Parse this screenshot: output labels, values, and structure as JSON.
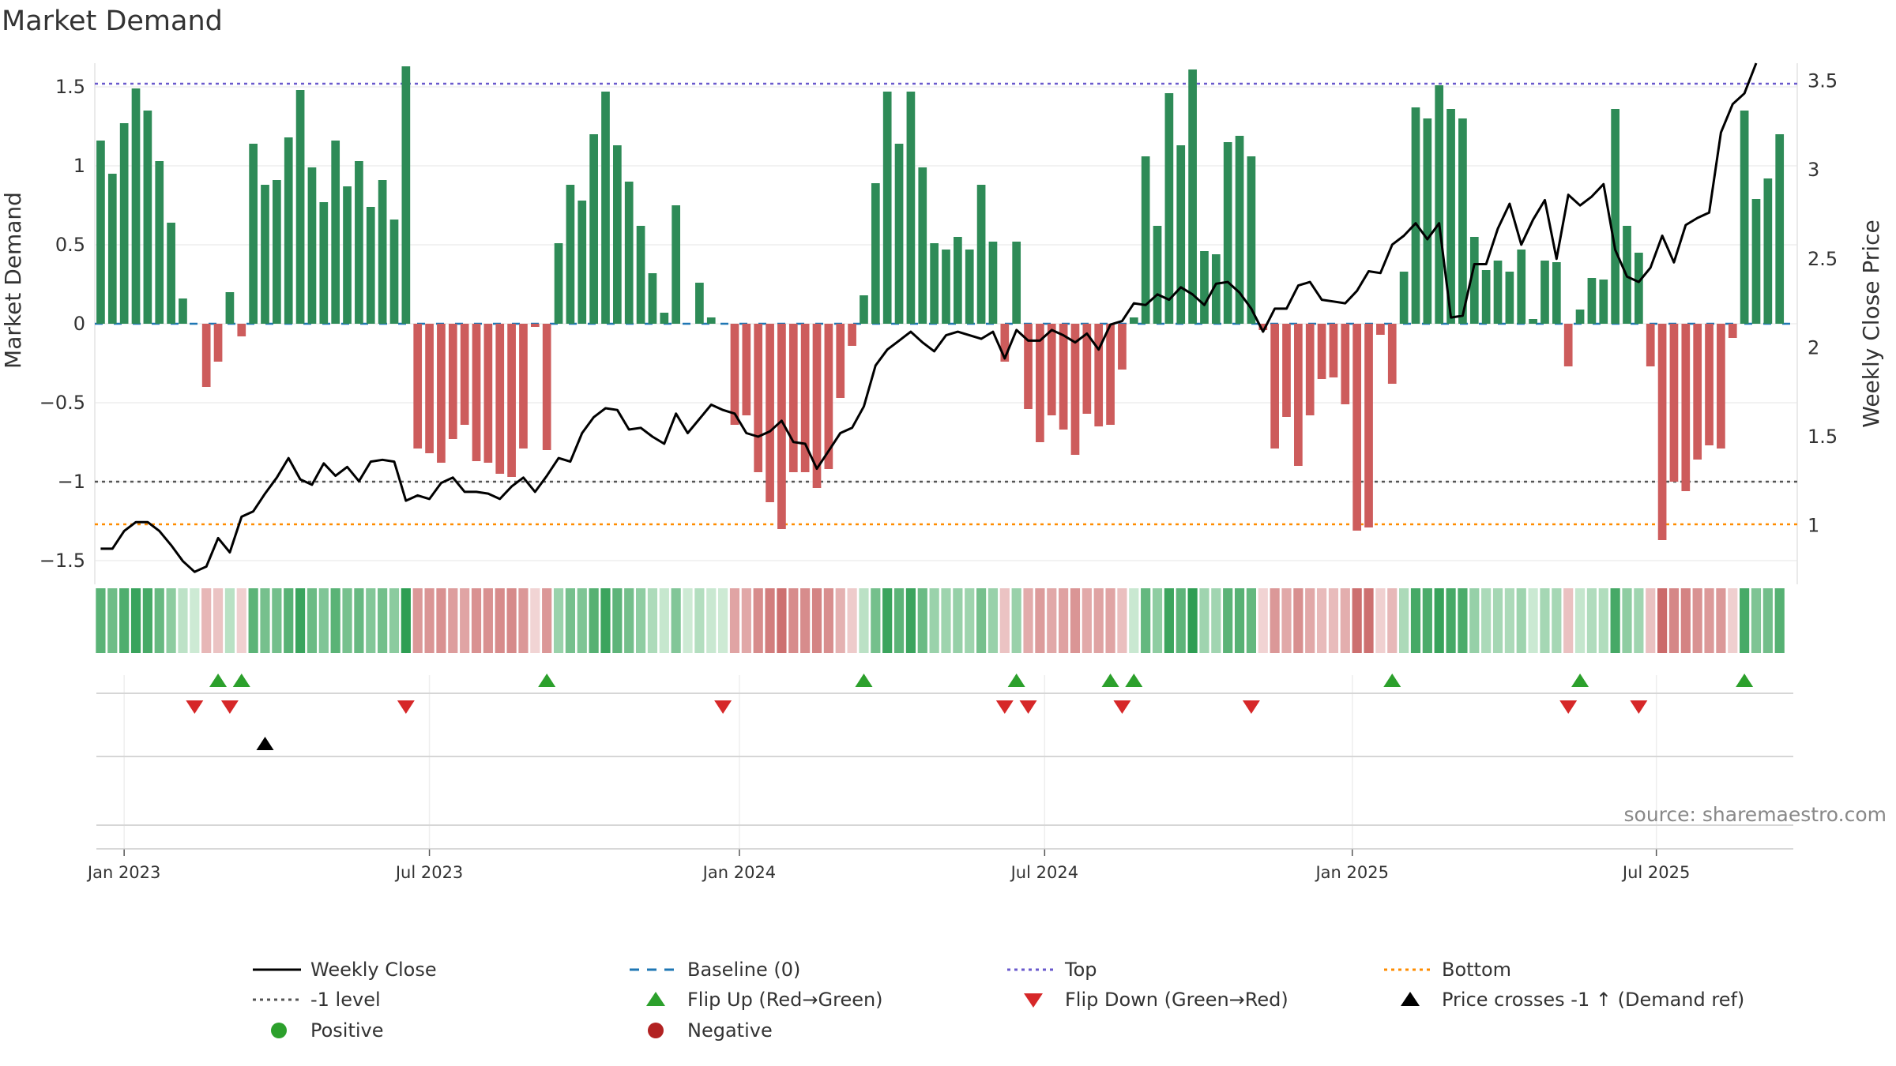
{
  "chart_data": {
    "type": "bar+line",
    "title": "Market Demand",
    "ylabel_left": "Market Demand",
    "ylabel_right": "Weekly Close Price",
    "ylim_left": [
      -1.65,
      1.65
    ],
    "ylim_right": [
      0.67,
      3.6
    ],
    "yticks_left": [
      1.5,
      1,
      0.5,
      0,
      -0.5,
      -1,
      -1.5
    ],
    "yticks_left_labels": [
      "1.5",
      "1",
      "0.5",
      "0",
      "−0.5",
      "−1",
      "−1.5"
    ],
    "yticks_right": [
      3.5,
      3,
      2.5,
      2,
      1.5,
      1
    ],
    "yticks_right_labels": [
      "3.5",
      "3",
      "2.5",
      "2",
      "1.5",
      "1"
    ],
    "x_start": "2022-12-19",
    "week_count": 145,
    "x_ticks": [
      {
        "label": "Jan 2023",
        "week": 2
      },
      {
        "label": "Jul 2023",
        "week": 28
      },
      {
        "label": "Jan 2024",
        "week": 54.4
      },
      {
        "label": "Jul 2024",
        "week": 80.4
      },
      {
        "label": "Jan 2025",
        "week": 106.6
      },
      {
        "label": "Jul 2025",
        "week": 132.5
      }
    ],
    "reference_lines": {
      "top": 1.52,
      "minus_one": -1.0,
      "bottom": -1.27,
      "baseline": 0
    },
    "demand": [
      1.16,
      0.95,
      1.27,
      1.49,
      1.35,
      1.03,
      0.64,
      0.16,
      0.0,
      -0.4,
      -0.24,
      0.2,
      -0.08,
      1.14,
      0.88,
      0.91,
      1.18,
      1.48,
      0.99,
      0.77,
      1.16,
      0.87,
      1.03,
      0.74,
      0.91,
      0.66,
      1.63,
      -0.79,
      -0.82,
      -0.88,
      -0.73,
      -0.64,
      -0.87,
      -0.88,
      -0.95,
      -0.97,
      -0.79,
      -0.02,
      -0.8,
      0.51,
      0.88,
      0.78,
      1.2,
      1.47,
      1.13,
      0.9,
      0.62,
      0.32,
      0.07,
      0.75,
      0.0,
      0.26,
      0.04,
      0.0,
      -0.64,
      -0.58,
      -0.94,
      -1.13,
      -1.3,
      -0.94,
      -0.94,
      -1.04,
      -0.92,
      -0.47,
      -0.14,
      0.18,
      0.89,
      1.47,
      1.14,
      1.47,
      0.99,
      0.51,
      0.47,
      0.55,
      0.47,
      0.88,
      0.52,
      -0.24,
      0.52,
      -0.54,
      -0.75,
      -0.58,
      -0.67,
      -0.83,
      -0.57,
      -0.65,
      -0.64,
      -0.29,
      0.04,
      1.06,
      0.62,
      1.46,
      1.13,
      1.61,
      0.46,
      0.44,
      1.15,
      1.19,
      1.06,
      -0.04,
      -0.79,
      -0.59,
      -0.9,
      -0.58,
      -0.35,
      -0.34,
      -0.51,
      -1.31,
      -1.29,
      -0.07,
      -0.38,
      0.33,
      1.37,
      1.3,
      1.51,
      1.36,
      1.3,
      0.55,
      0.34,
      0.4,
      0.33,
      0.47,
      0.03,
      0.4,
      0.39,
      -0.27,
      0.09,
      0.29,
      0.28,
      1.36,
      0.62,
      0.45,
      -0.27,
      -1.37,
      -1.0,
      -1.06,
      -0.86,
      -0.77,
      -0.79,
      -0.09,
      1.35,
      0.79,
      0.92,
      1.2
    ],
    "price": [
      0.87,
      0.87,
      0.97,
      1.02,
      1.02,
      0.97,
      0.89,
      0.8,
      0.74,
      0.77,
      0.93,
      0.85,
      1.05,
      1.08,
      1.18,
      1.27,
      1.38,
      1.26,
      1.23,
      1.35,
      1.28,
      1.33,
      1.25,
      1.36,
      1.37,
      1.36,
      1.14,
      1.17,
      1.15,
      1.24,
      1.27,
      1.19,
      1.19,
      1.18,
      1.15,
      1.22,
      1.27,
      1.19,
      1.28,
      1.38,
      1.36,
      1.52,
      1.61,
      1.66,
      1.65,
      1.54,
      1.55,
      1.5,
      1.46,
      1.63,
      1.52,
      1.6,
      1.68,
      1.65,
      1.63,
      1.52,
      1.5,
      1.53,
      1.59,
      1.47,
      1.46,
      1.32,
      1.42,
      1.52,
      1.55,
      1.67,
      1.9,
      1.99,
      2.04,
      2.09,
      2.03,
      1.98,
      2.07,
      2.09,
      2.07,
      2.05,
      2.09,
      1.94,
      2.1,
      2.04,
      2.04,
      2.1,
      2.07,
      2.03,
      2.08,
      1.99,
      2.13,
      2.15,
      2.25,
      2.24,
      2.3,
      2.27,
      2.34,
      2.3,
      2.24,
      2.36,
      2.37,
      2.31,
      2.22,
      2.09,
      2.22,
      2.22,
      2.35,
      2.37,
      2.27,
      2.26,
      2.25,
      2.32,
      2.43,
      2.42,
      2.58,
      2.63,
      2.7,
      2.61,
      2.7,
      2.17,
      2.18,
      2.47,
      2.47,
      2.67,
      2.81,
      2.58,
      2.72,
      2.83,
      2.5,
      2.86,
      2.8,
      2.85,
      2.92,
      2.55,
      2.4,
      2.37,
      2.45,
      2.63,
      2.48,
      2.69,
      2.73,
      2.76,
      3.21,
      3.37,
      3.43,
      3.6
    ],
    "flip_up_weeks": [
      10,
      12,
      38,
      65,
      78,
      86,
      88,
      110,
      126,
      140
    ],
    "flip_down_weeks": [
      8,
      11,
      26,
      53,
      77,
      79,
      87,
      98,
      125,
      131
    ],
    "price_cross_weeks": [
      14
    ],
    "legend": [
      {
        "label": "Weekly Close",
        "marker": "solid-line",
        "color": "#000000"
      },
      {
        "label": "Baseline (0)",
        "marker": "dash-line",
        "color": "#1f77b4"
      },
      {
        "label": "Top",
        "marker": "dot-line",
        "color": "#6a5acd"
      },
      {
        "label": "Bottom",
        "marker": "dot-line",
        "color": "#ff8c00"
      },
      {
        "label": "-1 level",
        "marker": "dot-line",
        "color": "#555555"
      },
      {
        "label": "Flip Up (Red→Green)",
        "marker": "triangle-up",
        "color": "#2ca02c"
      },
      {
        "label": "Flip Down (Green→Red)",
        "marker": "triangle-down",
        "color": "#d62728"
      },
      {
        "label": "Price crosses -1 ↑ (Demand ref)",
        "marker": "triangle-up",
        "color": "#000000"
      },
      {
        "label": "Positive",
        "marker": "circle",
        "color": "#2ca02c"
      },
      {
        "label": "Negative",
        "marker": "circle",
        "color": "#b22222"
      }
    ],
    "colors": {
      "positive_bar": "#2e8b57",
      "negative_bar": "#cd5c5c",
      "price_line": "#000000",
      "flip_up": "#2ca02c",
      "flip_down": "#d62728",
      "cross_up": "#000000"
    }
  },
  "source": "source: sharemaestro.com"
}
